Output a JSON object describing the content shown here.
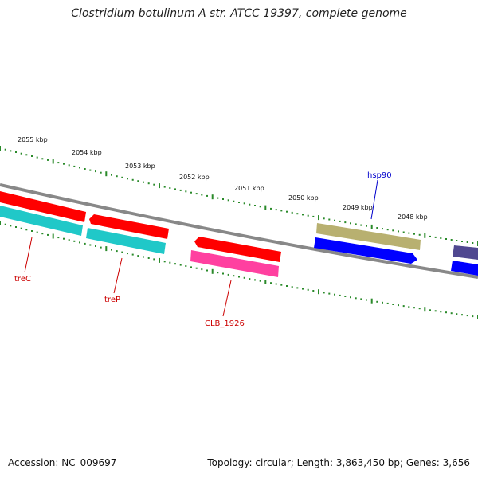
{
  "title": "Clostridium botulinum A str. ATCC 19397, complete genome",
  "footer": {
    "accession": "Accession: NC_009697",
    "summary": "Topology: circular; Length: 3,863,450 bp; Genes: 3,656"
  },
  "colors": {
    "backbone": "#8a8a8a",
    "scale_ticks": "#2a8a2a",
    "gene_red": "#ff0000",
    "gene_cyan": "#20c8c8",
    "gene_magenta": "#ff40a0",
    "gene_olive": "#b8b070",
    "gene_blue": "#0000ff",
    "gene_indigo": "#504890",
    "label_red": "#cc0000",
    "label_blue": "#0000cc"
  },
  "scale": {
    "tick_labels": [
      "2055 kbp",
      "2054 kbp",
      "2053 kbp",
      "2052 kbp",
      "2051 kbp",
      "2050 kbp",
      "2049 kbp",
      "2048 kbp"
    ]
  },
  "gene_labels": [
    "treC",
    "treP",
    "CLB_1926",
    "hsp90"
  ]
}
